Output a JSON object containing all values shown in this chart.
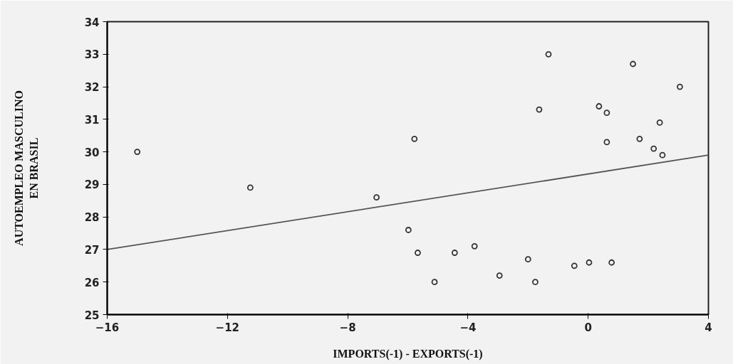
{
  "chart_data": {
    "type": "scatter",
    "xlabel": "IMPORTS(-1) - EXPORTS(-1)",
    "ylabel": "AUTOEMPLEO MASCULINO\nEN BRASIL",
    "xlim": [
      -16,
      4
    ],
    "xticks": [
      -16,
      -12,
      -8,
      -4,
      0,
      4
    ],
    "ylim": [
      25,
      34
    ],
    "yticks": [
      25,
      26,
      27,
      28,
      29,
      30,
      31,
      32,
      33,
      34
    ],
    "grid": false,
    "series": [
      {
        "marker": "circle",
        "color": "#333333",
        "x": [
          -15.0,
          -11.24,
          -7.04,
          -1.32,
          1.49,
          3.05,
          -1.63,
          0.36,
          0.62,
          2.38,
          -5.78,
          0.62,
          1.71,
          2.18,
          2.47,
          -5.98,
          -5.67,
          -4.44,
          -3.78,
          -5.11,
          -2.95,
          -2.0,
          -1.76,
          -0.46,
          0.03,
          0.78
        ],
        "values": [
          30.0,
          28.9,
          28.6,
          33.0,
          32.7,
          32.0,
          31.3,
          31.4,
          31.2,
          30.9,
          30.4,
          30.3,
          30.4,
          30.1,
          29.9,
          27.6,
          26.9,
          26.9,
          27.1,
          26.0,
          26.2,
          26.7,
          26.0,
          26.5,
          26.6,
          26.6
        ]
      },
      {
        "type": "line",
        "color": "#555555",
        "line_style": "solid",
        "x": [
          -16,
          4
        ],
        "values": [
          27.0,
          29.9
        ]
      }
    ]
  }
}
